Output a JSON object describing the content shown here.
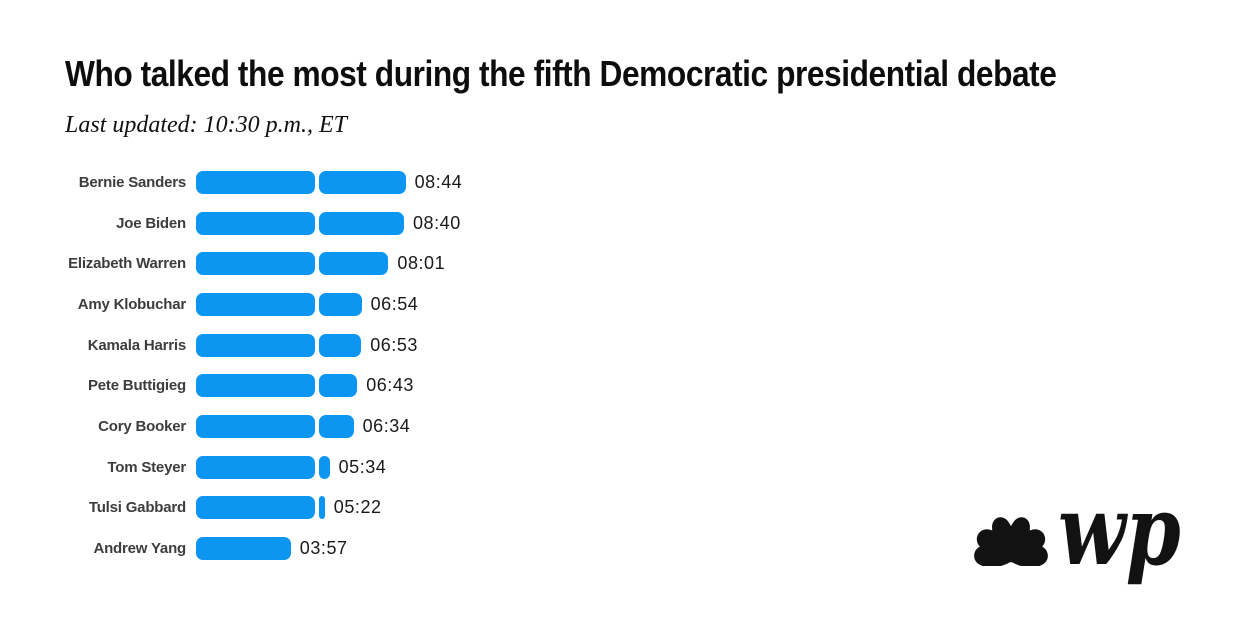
{
  "header": {
    "title": "Who talked the most during the fifth Democratic presidential debate",
    "subtitle": "Last updated: 10:30 p.m., ET"
  },
  "chart_data": {
    "type": "bar",
    "orientation": "horizontal",
    "title": "Who talked the most during the fifth Democratic presidential debate",
    "subtitle": "Last updated: 10:30 p.m., ET",
    "xlabel": "",
    "ylabel": "",
    "axes_hidden": true,
    "grid": false,
    "legend": "none",
    "categories": [
      "Bernie Sanders",
      "Joe Biden",
      "Elizabeth Warren",
      "Amy Klobuchar",
      "Kamala Harris",
      "Pete Buttigieg",
      "Cory Booker",
      "Tom Steyer",
      "Tulsi Gabbard",
      "Andrew Yang"
    ],
    "value_labels": [
      "08:44",
      "08:40",
      "08:01",
      "06:54",
      "06:53",
      "06:43",
      "06:34",
      "05:34",
      "05:22",
      "03:57"
    ],
    "values_seconds": [
      524,
      520,
      481,
      414,
      413,
      403,
      394,
      334,
      322,
      237
    ],
    "units": "minutes:seconds of speaking time",
    "segment_break_seconds": 300,
    "bar_color": "#0c96f2",
    "label_color": "#3d3d3d",
    "value_color": "#1a1a1a"
  },
  "footer": {
    "logos": [
      "nbc-peacock",
      "washington-post-monogram"
    ],
    "wp_monogram": "wp"
  },
  "colors": {
    "background": "#ffffff",
    "bar_blue": "#0c96f2",
    "title_black": "#0d0d0d",
    "logo_black": "#121212"
  }
}
